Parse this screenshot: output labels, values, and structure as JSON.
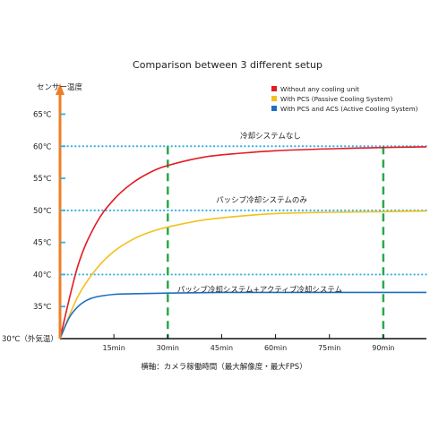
{
  "chart_data": {
    "type": "line",
    "title": "Comparison between 3 different setup",
    "ylabel": "センサー温度",
    "xlabel": "横軸：カメラ稼働時間（最大解像度・最大FPS）",
    "origin_label": "30℃（外気温）",
    "xlim": [
      0,
      102
    ],
    "ylim": [
      30,
      68
    ],
    "x_ticks": [
      {
        "value": 15,
        "label": "15min"
      },
      {
        "value": 30,
        "label": "30min"
      },
      {
        "value": 45,
        "label": "45min"
      },
      {
        "value": 60,
        "label": "60min"
      },
      {
        "value": 75,
        "label": "75min"
      },
      {
        "value": 90,
        "label": "90min"
      }
    ],
    "y_ticks": [
      {
        "value": 35,
        "label": "35℃"
      },
      {
        "value": 40,
        "label": "40℃"
      },
      {
        "value": 45,
        "label": "45℃"
      },
      {
        "value": 50,
        "label": "50℃"
      },
      {
        "value": 55,
        "label": "55℃"
      },
      {
        "value": 60,
        "label": "60℃"
      },
      {
        "value": 65,
        "label": "65℃"
      }
    ],
    "reference_lines": [
      {
        "y": 60,
        "label": "冷却システムなし"
      },
      {
        "y": 50,
        "label": "パッシブ冷却システムのみ"
      },
      {
        "y": 40,
        "label": ""
      }
    ],
    "vertical_markers": [
      30,
      90
    ],
    "annotation": "パッシブ冷却システム+アクティブ冷却システム",
    "series": [
      {
        "name": "Without any cooling unit",
        "color": "#e31b23",
        "x": [
          0,
          5,
          10,
          15,
          20,
          25,
          30,
          40,
          50,
          60,
          75,
          90,
          102
        ],
        "y": [
          30,
          41.4,
          47.9,
          51.7,
          54.2,
          55.9,
          57.0,
          58.3,
          58.9,
          59.3,
          59.6,
          59.8,
          59.9
        ]
      },
      {
        "name": "With PCS (Passive Cooling System)",
        "color": "#f2c01e",
        "x": [
          0,
          5,
          10,
          15,
          20,
          25,
          30,
          40,
          50,
          60,
          75,
          90,
          102
        ],
        "y": [
          30,
          36.6,
          40.8,
          43.6,
          45.4,
          46.6,
          47.4,
          48.5,
          49.1,
          49.5,
          49.7,
          49.8,
          49.9
        ]
      },
      {
        "name": "With PCS and ACS (Active Cooling System)",
        "color": "#1f6fbf",
        "x": [
          0,
          2.5,
          5,
          7.5,
          10,
          15,
          20,
          30,
          45,
          60,
          75,
          90,
          102
        ],
        "y": [
          30,
          33.2,
          35.0,
          36.0,
          36.5,
          36.9,
          37.0,
          37.1,
          37.2,
          37.2,
          37.2,
          37.2,
          37.2
        ]
      }
    ],
    "colors": {
      "axis": "#f07e26",
      "reference": "#3ab0e6",
      "marker": "#2aa84a",
      "tick": "#3ab0e6"
    }
  }
}
